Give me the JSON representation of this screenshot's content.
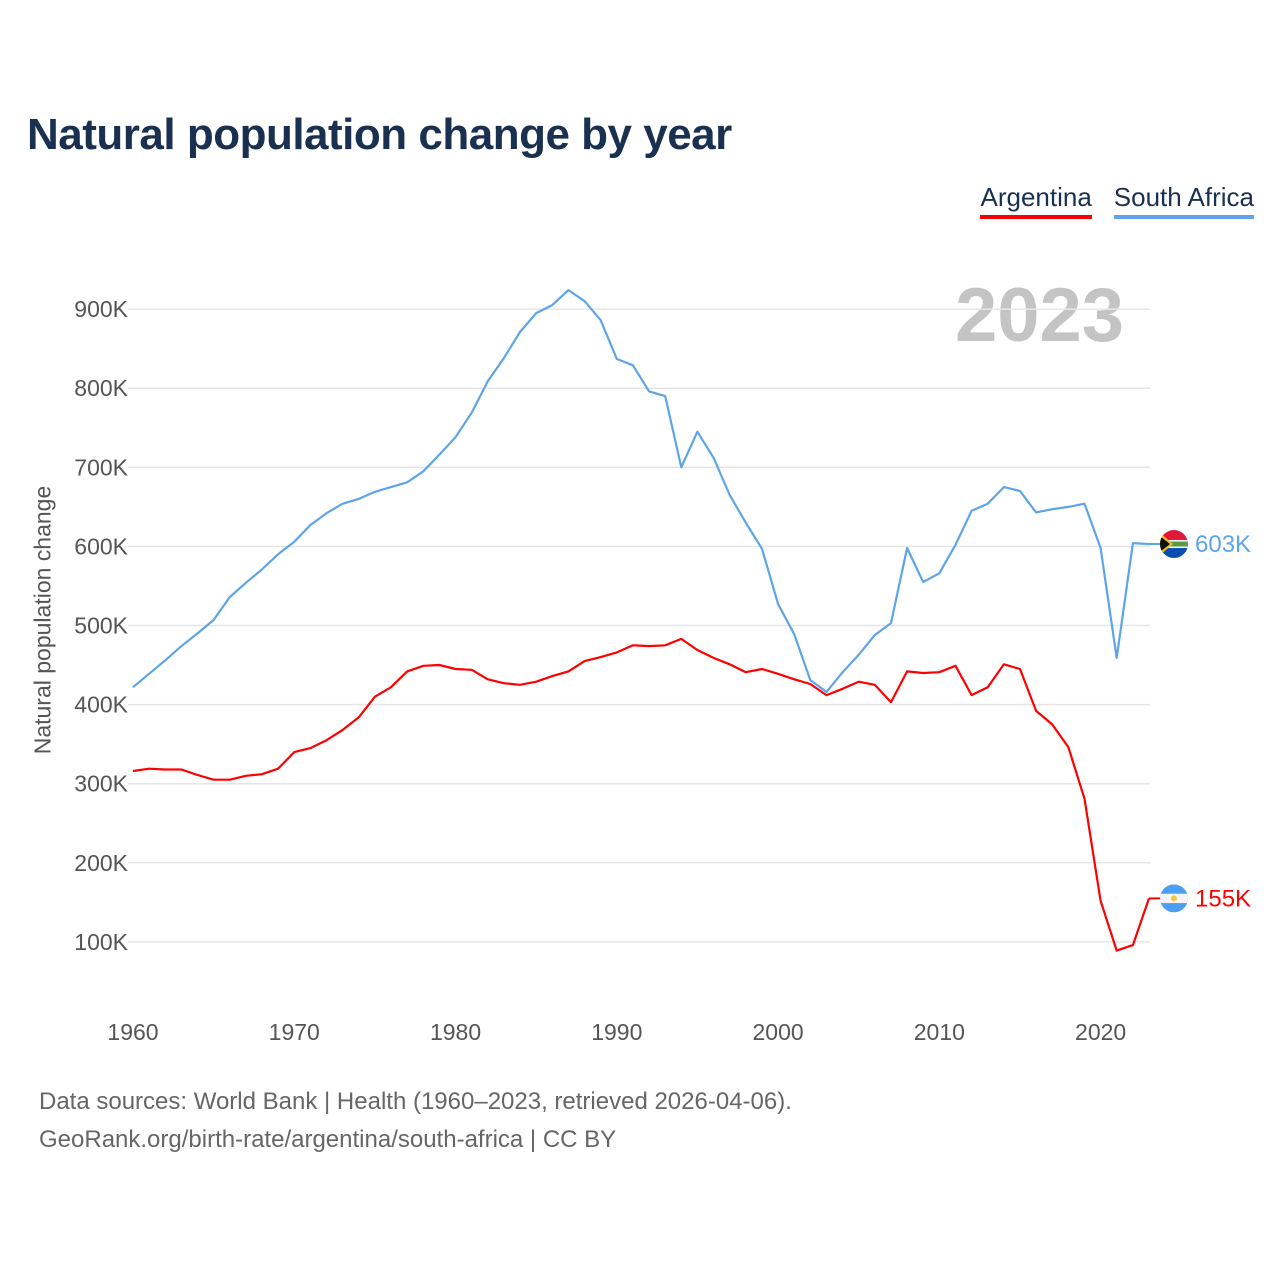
{
  "chart_data": {
    "type": "line",
    "title": "Natural population change by year",
    "xlabel": "",
    "ylabel": "Natural population change",
    "xlim": [
      1960,
      2023
    ],
    "ylim": [
      0,
      1000000
    ],
    "grid": true,
    "legend_position": "top-right",
    "highlight_year": "2023",
    "x_ticks": [
      1960,
      1970,
      1980,
      1990,
      2000,
      2010,
      2020
    ],
    "y_ticks": [
      100000,
      200000,
      300000,
      400000,
      500000,
      600000,
      700000,
      800000,
      900000
    ],
    "y_tick_labels": [
      "100K",
      "200K",
      "300K",
      "400K",
      "500K",
      "600K",
      "700K",
      "800K",
      "900K"
    ],
    "x_start": 1960,
    "series": [
      {
        "name": "Argentina",
        "color": "#ff0000",
        "flag": "argentina-flag",
        "end_label": "155K",
        "values": [
          316000,
          319000,
          318000,
          318000,
          311000,
          305000,
          305000,
          310000,
          312000,
          319000,
          340000,
          345000,
          355000,
          368000,
          384000,
          410000,
          422000,
          442000,
          449000,
          450000,
          445000,
          444000,
          432000,
          427000,
          425000,
          429000,
          436000,
          442000,
          455000,
          460000,
          466000,
          475000,
          474000,
          475000,
          483000,
          469000,
          459000,
          451000,
          441000,
          445000,
          439000,
          432000,
          426000,
          412000,
          420000,
          429000,
          425000,
          403000,
          442000,
          440000,
          441000,
          449000,
          412000,
          422000,
          451000,
          445000,
          392000,
          375000,
          346000,
          281000,
          152000,
          89000,
          96000,
          155000
        ]
      },
      {
        "name": "South Africa",
        "color": "#5da5e8",
        "flag": "south-africa-flag",
        "end_label": "603K",
        "values": [
          422000,
          439000,
          456000,
          474000,
          490000,
          507000,
          536000,
          554000,
          571000,
          590000,
          606000,
          627000,
          642000,
          654000,
          660000,
          669000,
          675000,
          681000,
          695000,
          716000,
          738000,
          769000,
          809000,
          838000,
          871000,
          895000,
          905000,
          924000,
          910000,
          886000,
          837000,
          829000,
          796000,
          790000,
          700000,
          745000,
          712000,
          665000,
          630000,
          597000,
          527000,
          489000,
          431000,
          416000,
          441000,
          463000,
          488000,
          503000,
          598000,
          555000,
          566000,
          602000,
          645000,
          654000,
          675000,
          670000,
          643000,
          647000,
          650000,
          654000,
          598000,
          459000,
          604000,
          603000
        ]
      }
    ]
  },
  "footer": {
    "line1": "Data sources: World Bank | Health (1960–2023, retrieved 2026-04-06).",
    "line2": "GeoRank.org/birth-rate/argentina/south-africa | CC BY"
  }
}
